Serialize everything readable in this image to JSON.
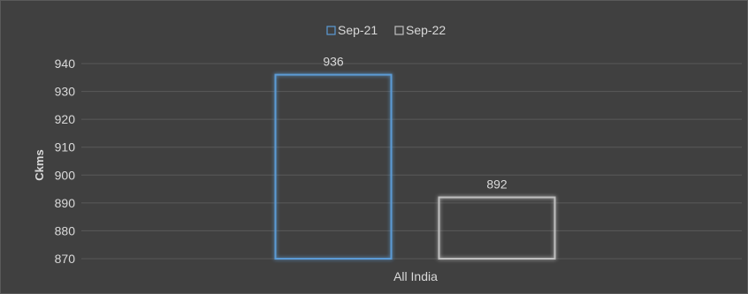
{
  "chart_data": {
    "type": "bar",
    "categories": [
      "All India"
    ],
    "series": [
      {
        "name": "Sep-21",
        "values": [
          936
        ],
        "color": "#5b9bd5"
      },
      {
        "name": "Sep-22",
        "values": [
          892
        ],
        "color": "#bfbfbf"
      }
    ],
    "ylabel": "Ckms",
    "ylim": [
      870,
      940
    ],
    "yticks": [
      870,
      880,
      890,
      900,
      910,
      920,
      930,
      940
    ],
    "data_labels": [
      "936",
      "892"
    ],
    "grid": true,
    "legend_position": "top-center",
    "bar_style": "outlined-with-glow",
    "background": "#404040"
  }
}
